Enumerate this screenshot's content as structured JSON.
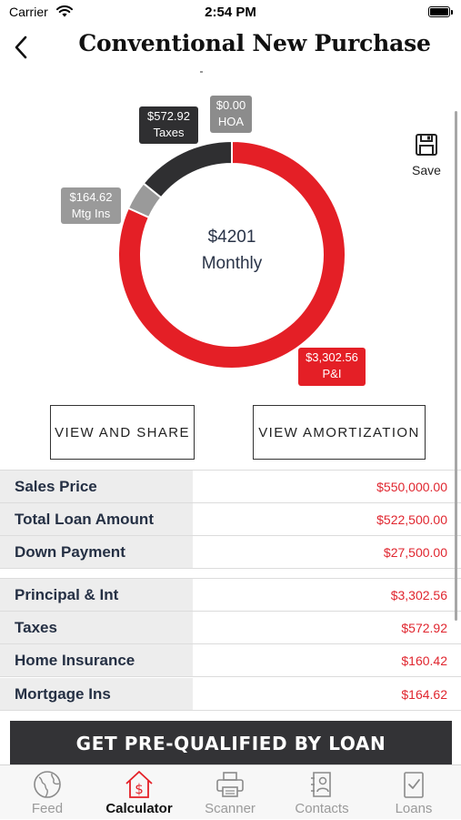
{
  "status_bar": {
    "carrier": "Carrier",
    "time": "2:54 PM"
  },
  "nav": {
    "title": "Conventional New Purchase"
  },
  "chart_data": {
    "type": "pie",
    "categories": [
      "P&I",
      "Mtg Ins",
      "Taxes",
      "HOA"
    ],
    "values": [
      3302.56,
      164.62,
      572.92,
      0.0
    ],
    "colors": [
      "#e41f26",
      "#9a9a9a",
      "#2f2f31",
      "#8c8c8c"
    ],
    "center_amount": "$4201",
    "center_label": "Monthly",
    "callouts": {
      "taxes": {
        "amount": "$572.92",
        "label": "Taxes"
      },
      "hoa": {
        "amount": "$0.00",
        "label": "HOA"
      },
      "mtg_ins": {
        "amount": "$164.62",
        "label": "Mtg Ins"
      },
      "pi": {
        "amount": "$3,302.56",
        "label": "P&I"
      }
    }
  },
  "save": {
    "label": "Save"
  },
  "actions": {
    "share": "VIEW AND SHARE",
    "amortization": "VIEW AMORTIZATION"
  },
  "details": {
    "group1": [
      {
        "label": "Sales Price",
        "value": "$550,000.00"
      },
      {
        "label": "Total Loan Amount",
        "value": "$522,500.00"
      },
      {
        "label": "Down Payment",
        "value": "$27,500.00"
      }
    ],
    "group2": [
      {
        "label": "Principal & Int",
        "value": "$3,302.56"
      },
      {
        "label": "Taxes",
        "value": "$572.92"
      },
      {
        "label": "Home Insurance",
        "value": "$160.42"
      },
      {
        "label": "Mortgage Ins",
        "value": "$164.62"
      }
    ]
  },
  "cta": {
    "label": "GET PRE-QUALIFIED BY LOAN"
  },
  "tabs": [
    {
      "label": "Feed",
      "icon": "globe-icon"
    },
    {
      "label": "Calculator",
      "icon": "house-dollar-icon",
      "active": true
    },
    {
      "label": "Scanner",
      "icon": "printer-icon"
    },
    {
      "label": "Contacts",
      "icon": "contacts-icon"
    },
    {
      "label": "Loans",
      "icon": "checklist-icon"
    }
  ]
}
